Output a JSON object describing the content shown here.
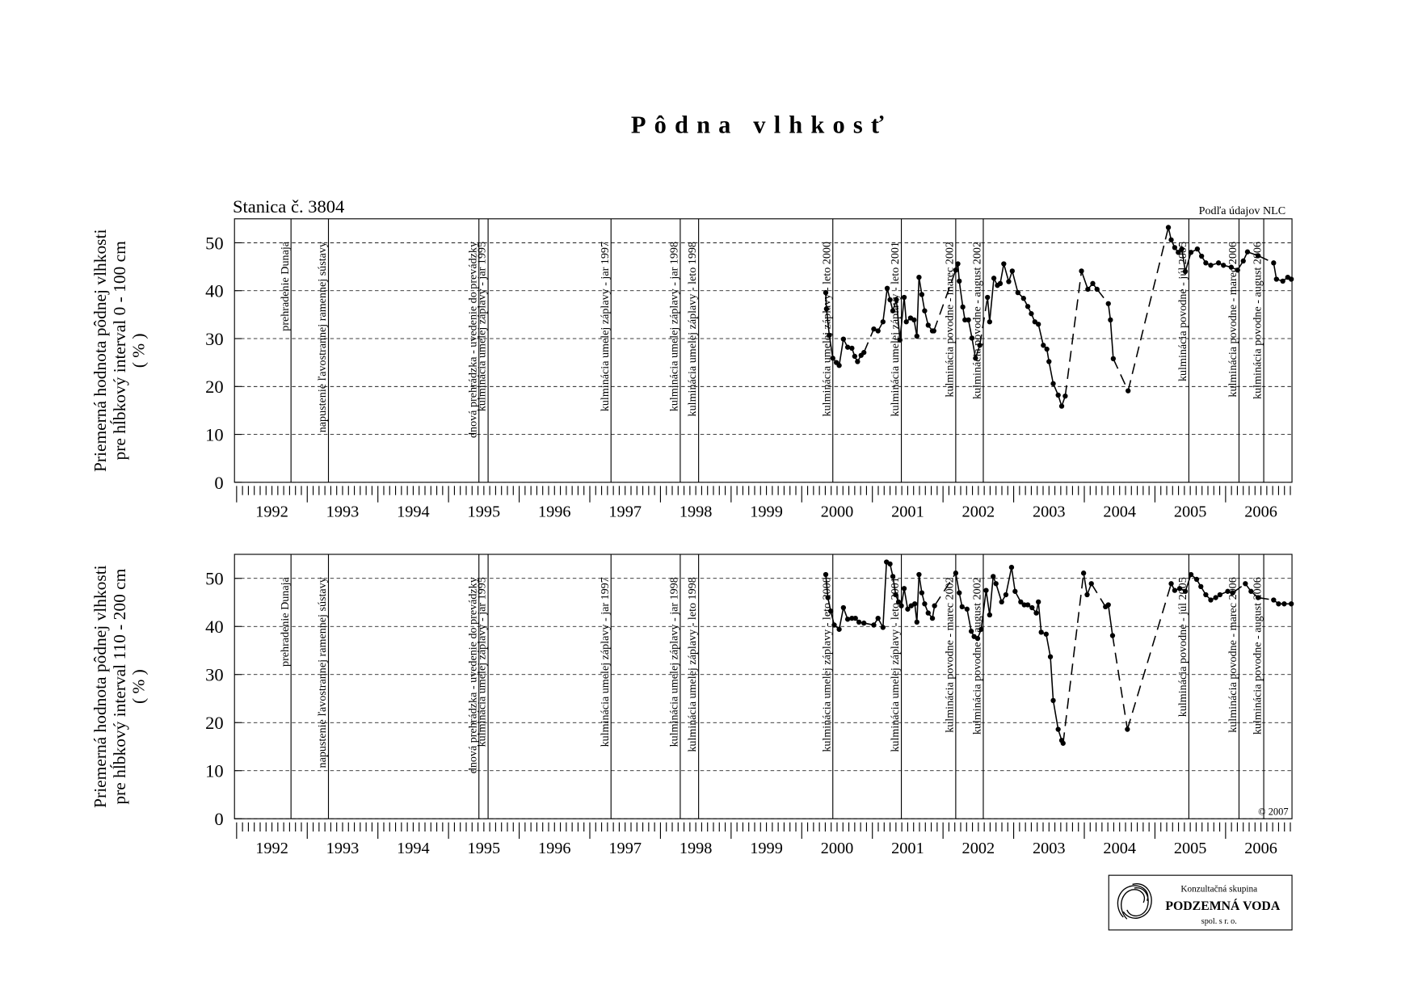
{
  "title": "Pôdna vlhkosť",
  "logo": {
    "line1": "Konzultačná skupina",
    "line2": "PODZEMNÁ VODA",
    "line3": "spol. s r. o."
  },
  "annotations": [
    {
      "x": 1992.77,
      "label": "prehradenie Dunaja"
    },
    {
      "x": 1993.3,
      "label": "napustenie ľavostrannej ramennej sústavy"
    },
    {
      "x": 1995.43,
      "label": "dnová prehrádzka - uvedenie do prevádzky"
    },
    {
      "x": 1995.56,
      "label": "kulminácia umelej záplavy - jar 1995"
    },
    {
      "x": 1997.3,
      "label": "kulminácia umelej záplavy - jar 1997"
    },
    {
      "x": 1998.28,
      "label": "kulminácia umelej záplavy - jar 1998"
    },
    {
      "x": 1998.54,
      "label": "kulminácia umelej záplavy - leto 1998"
    },
    {
      "x": 2000.44,
      "label": "kulminácia umelej záplavy - leto 2000"
    },
    {
      "x": 2001.41,
      "label": "kulminácia umelej záplavy - leto 2001"
    },
    {
      "x": 2002.18,
      "label": "kulminácia povodne - marec 2002"
    },
    {
      "x": 2002.57,
      "label": "kulminácia povodne - august 2002"
    },
    {
      "x": 2005.48,
      "label": "kulminácia povodne - júl 2005"
    },
    {
      "x": 2006.19,
      "label": "kulminácia povodne - marec 2006"
    },
    {
      "x": 2006.54,
      "label": "kulminácia povodne - august 2006"
    }
  ],
  "chart_data": [
    {
      "type": "line",
      "subtitle": "Stanica č. 3804",
      "source": "Podľa údajov NLC",
      "ylabel": [
        "Priemerná hodnota pôdnej vlhkosti",
        "pre hĺbkový interval 0 - 100 cm",
        "( % )"
      ],
      "color": "#000000",
      "grid": true,
      "xlim": [
        1991.97,
        2006.94
      ],
      "ylim": [
        0,
        55
      ],
      "yticks": [
        0,
        10,
        20,
        30,
        40,
        50
      ],
      "xticks": [
        {
          "value": 1992.5,
          "label": "1992"
        },
        {
          "value": 1993.5,
          "label": "1993"
        },
        {
          "value": 1994.5,
          "label": "1994"
        },
        {
          "value": 1995.5,
          "label": "1995"
        },
        {
          "value": 1996.5,
          "label": "1996"
        },
        {
          "value": 1997.5,
          "label": "1997"
        },
        {
          "value": 1998.5,
          "label": "1998"
        },
        {
          "value": 1999.5,
          "label": "1999"
        },
        {
          "value": 2000.5,
          "label": "2000"
        },
        {
          "value": 2001.5,
          "label": "2001"
        },
        {
          "value": 2002.5,
          "label": "2002"
        },
        {
          "value": 2003.5,
          "label": "2003"
        },
        {
          "value": 2004.5,
          "label": "2004"
        },
        {
          "value": 2005.5,
          "label": "2005"
        },
        {
          "value": 2006.5,
          "label": "2006"
        }
      ],
      "x": [
        2000.34,
        2000.35,
        2000.39,
        2000.44,
        2000.49,
        2000.53,
        2000.59,
        2000.65,
        2000.71,
        2000.75,
        2000.79,
        2000.84,
        2000.88,
        2001.02,
        2001.08,
        2001.15,
        2001.21,
        2001.25,
        2001.29,
        2001.34,
        2001.39,
        2001.45,
        2001.48,
        2001.54,
        2001.59,
        2001.63,
        2001.66,
        2001.7,
        2001.74,
        2001.79,
        2001.85,
        2001.87,
        2002.18,
        2002.21,
        2002.23,
        2002.28,
        2002.31,
        2002.36,
        2002.41,
        2002.46,
        2002.52,
        2002.63,
        2002.66,
        2002.72,
        2002.77,
        2002.81,
        2002.86,
        2002.93,
        2002.98,
        2003.06,
        2003.14,
        2003.2,
        2003.25,
        2003.3,
        2003.35,
        2003.42,
        2003.47,
        2003.5,
        2003.56,
        2003.63,
        2003.68,
        2003.73,
        2003.96,
        2004.05,
        2004.12,
        2004.18,
        2004.34,
        2004.37,
        2004.41,
        2004.62,
        2005.19,
        2005.23,
        2005.28,
        2005.33,
        2005.38,
        2005.43,
        2005.51,
        2005.6,
        2005.66,
        2005.72,
        2005.79,
        2005.9,
        2005.97,
        2006.08,
        2006.17,
        2006.25,
        2006.31,
        2006.46,
        2006.68,
        2006.72,
        2006.81,
        2006.88,
        2006.93
      ],
      "values": [
        39.6,
        36.2,
        30.7,
        25.9,
        25.0,
        24.4,
        29.9,
        28.2,
        28.0,
        26.3,
        25.2,
        26.5,
        27.1,
        32.0,
        31.6,
        33.5,
        40.5,
        38.1,
        35.8,
        38.1,
        29.7,
        38.6,
        33.5,
        34.3,
        33.9,
        30.5,
        42.8,
        39.2,
        35.8,
        32.8,
        31.6,
        31.6,
        44.3,
        45.6,
        42.0,
        36.6,
        33.9,
        33.9,
        30.1,
        25.9,
        28.6,
        38.6,
        33.5,
        42.6,
        41.1,
        41.5,
        45.6,
        41.9,
        44.1,
        39.6,
        38.4,
        36.7,
        35.2,
        33.5,
        33.0,
        28.6,
        27.8,
        25.2,
        20.6,
        18.2,
        15.9,
        18.0,
        44.1,
        40.3,
        41.5,
        40.3,
        37.3,
        33.9,
        25.8,
        19.1,
        53.2,
        50.6,
        49.0,
        48.0,
        48.7,
        44.0,
        48.0,
        48.7,
        47.2,
        45.8,
        45.3,
        45.8,
        45.3,
        44.9,
        44.3,
        46.2,
        48.1,
        47.3,
        45.8,
        42.4,
        42.0,
        42.8,
        42.4
      ]
    },
    {
      "type": "line",
      "copyright": "© 2007",
      "ylabel": [
        "Priemerná hodnota pôdnej vlhkosti",
        "pre hĺbkový interval 110 - 200 cm",
        "( % )"
      ],
      "color": "#000000",
      "grid": true,
      "xlim": [
        1991.97,
        2006.94
      ],
      "ylim": [
        0,
        55
      ],
      "yticks": [
        0,
        10,
        20,
        30,
        40,
        50
      ],
      "xticks": [
        {
          "value": 1992.5,
          "label": "1992"
        },
        {
          "value": 1993.5,
          "label": "1993"
        },
        {
          "value": 1994.5,
          "label": "1994"
        },
        {
          "value": 1995.5,
          "label": "1995"
        },
        {
          "value": 1996.5,
          "label": "1996"
        },
        {
          "value": 1997.5,
          "label": "1997"
        },
        {
          "value": 1998.5,
          "label": "1998"
        },
        {
          "value": 1999.5,
          "label": "1999"
        },
        {
          "value": 2000.5,
          "label": "2000"
        },
        {
          "value": 2001.5,
          "label": "2001"
        },
        {
          "value": 2002.5,
          "label": "2002"
        },
        {
          "value": 2003.5,
          "label": "2003"
        },
        {
          "value": 2004.5,
          "label": "2004"
        },
        {
          "value": 2005.5,
          "label": "2005"
        },
        {
          "value": 2006.5,
          "label": "2006"
        }
      ],
      "x": [
        2000.34,
        2000.37,
        2000.41,
        2000.46,
        2000.53,
        2000.59,
        2000.65,
        2000.71,
        2000.76,
        2000.81,
        2000.88,
        2001.02,
        2001.08,
        2001.15,
        2001.2,
        2001.25,
        2001.29,
        2001.33,
        2001.37,
        2001.41,
        2001.45,
        2001.5,
        2001.55,
        2001.6,
        2001.63,
        2001.66,
        2001.7,
        2001.74,
        2001.79,
        2001.85,
        2001.88,
        2002.18,
        2002.23,
        2002.27,
        2002.34,
        2002.4,
        2002.44,
        2002.49,
        2002.54,
        2002.61,
        2002.66,
        2002.71,
        2002.75,
        2002.83,
        2002.89,
        2002.97,
        2003.02,
        2003.1,
        2003.15,
        2003.2,
        2003.26,
        2003.32,
        2003.35,
        2003.39,
        2003.46,
        2003.52,
        2003.56,
        2003.63,
        2003.68,
        2003.7,
        2003.99,
        2004.04,
        2004.1,
        2004.3,
        2004.34,
        2004.4,
        2004.61,
        2005.23,
        2005.28,
        2005.35,
        2005.43,
        2005.51,
        2005.59,
        2005.65,
        2005.72,
        2005.79,
        2005.86,
        2005.92,
        2006.03,
        2006.1,
        2006.28,
        2006.36,
        2006.46,
        2006.68,
        2006.75,
        2006.83,
        2006.93
      ],
      "values": [
        50.8,
        46.0,
        43.2,
        40.3,
        39.4,
        43.9,
        41.5,
        41.7,
        41.7,
        40.9,
        40.7,
        40.3,
        41.7,
        39.8,
        53.4,
        53.0,
        50.4,
        46.6,
        45.1,
        44.3,
        47.9,
        43.6,
        44.3,
        44.7,
        40.9,
        50.8,
        47.0,
        44.7,
        42.8,
        41.7,
        44.3,
        51.1,
        47.0,
        44.1,
        43.6,
        39.0,
        37.9,
        37.5,
        39.4,
        47.5,
        42.4,
        50.4,
        48.9,
        45.1,
        46.6,
        52.3,
        47.3,
        45.1,
        44.5,
        44.5,
        43.9,
        42.8,
        45.1,
        38.8,
        38.4,
        33.7,
        24.6,
        18.6,
        16.3,
        15.7,
        51.1,
        46.6,
        48.9,
        44.1,
        44.5,
        38.1,
        18.6,
        48.9,
        47.5,
        47.9,
        47.3,
        50.8,
        49.8,
        48.3,
        46.6,
        45.5,
        46.0,
        46.6,
        47.3,
        47.0,
        48.9,
        47.3,
        46.0,
        45.5,
        44.7,
        44.7,
        44.7
      ]
    }
  ]
}
